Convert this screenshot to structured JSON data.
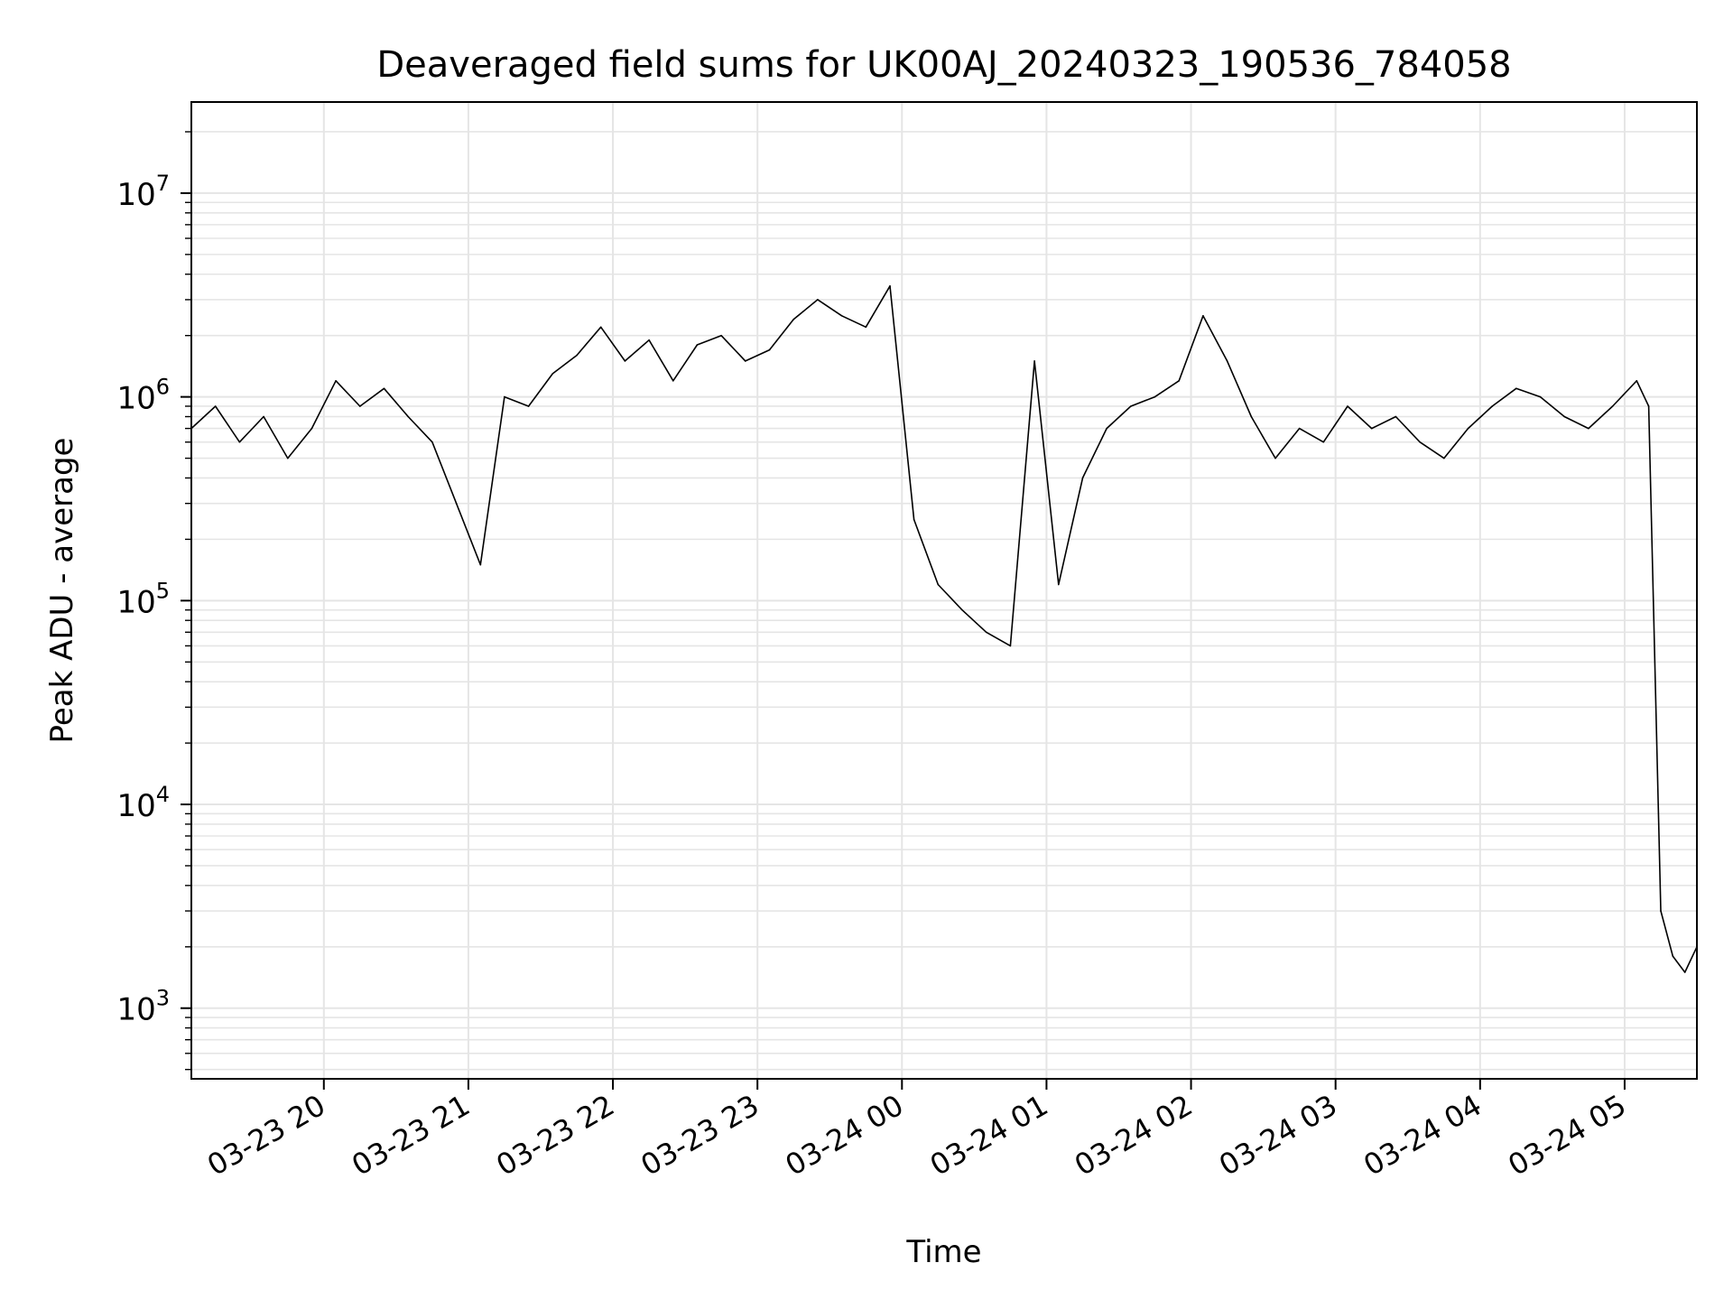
{
  "chart_data": {
    "type": "line",
    "title": "Deaveraged field sums for UK00AJ_20240323_190536_784058",
    "xlabel": "Time",
    "ylabel": "Peak ADU - average",
    "yscale": "log",
    "ylim": [
      450,
      28000000
    ],
    "xlim": [
      "2024-03-23 19:05",
      "2024-03-24 05:30"
    ],
    "grid": true,
    "line_color": "#000000",
    "grid_color": "#e5e5e5",
    "x_ticks": [
      {
        "value": "2024-03-23 20:00",
        "label": "03-23 20"
      },
      {
        "value": "2024-03-23 21:00",
        "label": "03-23 21"
      },
      {
        "value": "2024-03-23 22:00",
        "label": "03-23 22"
      },
      {
        "value": "2024-03-23 23:00",
        "label": "03-23 23"
      },
      {
        "value": "2024-03-24 00:00",
        "label": "03-24 00"
      },
      {
        "value": "2024-03-24 01:00",
        "label": "03-24 01"
      },
      {
        "value": "2024-03-24 02:00",
        "label": "03-24 02"
      },
      {
        "value": "2024-03-24 03:00",
        "label": "03-24 03"
      },
      {
        "value": "2024-03-24 04:00",
        "label": "03-24 04"
      },
      {
        "value": "2024-03-24 05:00",
        "label": "03-24 05"
      }
    ],
    "y_ticks": [
      {
        "value": 1000,
        "base": "10",
        "exp": "3"
      },
      {
        "value": 10000,
        "base": "10",
        "exp": "4"
      },
      {
        "value": 100000,
        "base": "10",
        "exp": "5"
      },
      {
        "value": 1000000,
        "base": "10",
        "exp": "6"
      },
      {
        "value": 10000000,
        "base": "10",
        "exp": "7"
      }
    ],
    "series": [
      {
        "x": [
          "2024-03-23 19:05",
          "2024-03-23 19:15",
          "2024-03-23 19:25",
          "2024-03-23 19:35",
          "2024-03-23 19:45",
          "2024-03-23 19:55",
          "2024-03-23 20:05",
          "2024-03-23 20:15",
          "2024-03-23 20:25",
          "2024-03-23 20:35",
          "2024-03-23 20:45",
          "2024-03-23 20:55",
          "2024-03-23 21:05",
          "2024-03-23 21:15",
          "2024-03-23 21:25",
          "2024-03-23 21:35",
          "2024-03-23 21:45",
          "2024-03-23 21:55",
          "2024-03-23 22:05",
          "2024-03-23 22:15",
          "2024-03-23 22:25",
          "2024-03-23 22:35",
          "2024-03-23 22:45",
          "2024-03-23 22:55",
          "2024-03-23 23:05",
          "2024-03-23 23:15",
          "2024-03-23 23:25",
          "2024-03-23 23:35",
          "2024-03-23 23:45",
          "2024-03-23 23:55",
          "2024-03-24 00:05",
          "2024-03-24 00:15",
          "2024-03-24 00:25",
          "2024-03-24 00:35",
          "2024-03-24 00:45",
          "2024-03-24 00:55",
          "2024-03-24 01:05",
          "2024-03-24 01:15",
          "2024-03-24 01:25",
          "2024-03-24 01:35",
          "2024-03-24 01:45",
          "2024-03-24 01:55",
          "2024-03-24 02:05",
          "2024-03-24 02:15",
          "2024-03-24 02:25",
          "2024-03-24 02:35",
          "2024-03-24 02:45",
          "2024-03-24 02:55",
          "2024-03-24 03:05",
          "2024-03-24 03:15",
          "2024-03-24 03:25",
          "2024-03-24 03:35",
          "2024-03-24 03:45",
          "2024-03-24 03:55",
          "2024-03-24 04:05",
          "2024-03-24 04:15",
          "2024-03-24 04:25",
          "2024-03-24 04:35",
          "2024-03-24 04:45",
          "2024-03-24 04:55",
          "2024-03-24 05:05",
          "2024-03-24 05:10",
          "2024-03-24 05:15",
          "2024-03-24 05:20",
          "2024-03-24 05:25",
          "2024-03-24 05:30"
        ],
        "y": [
          700000,
          900000,
          600000,
          800000,
          500000,
          700000,
          1200000,
          900000,
          1100000,
          800000,
          600000,
          300000,
          150000,
          1000000,
          900000,
          1300000,
          1600000,
          2200000,
          1500000,
          1900000,
          1200000,
          1800000,
          2000000,
          1500000,
          1700000,
          2400000,
          3000000,
          2500000,
          2200000,
          3500000,
          250000,
          120000,
          90000,
          70000,
          60000,
          1500000,
          120000,
          400000,
          700000,
          900000,
          1000000,
          1200000,
          2500000,
          1500000,
          800000,
          500000,
          700000,
          600000,
          900000,
          700000,
          800000,
          600000,
          500000,
          700000,
          900000,
          1100000,
          1000000,
          800000,
          700000,
          900000,
          1200000,
          900000,
          3000,
          1800,
          1500,
          2000
        ]
      }
    ]
  }
}
